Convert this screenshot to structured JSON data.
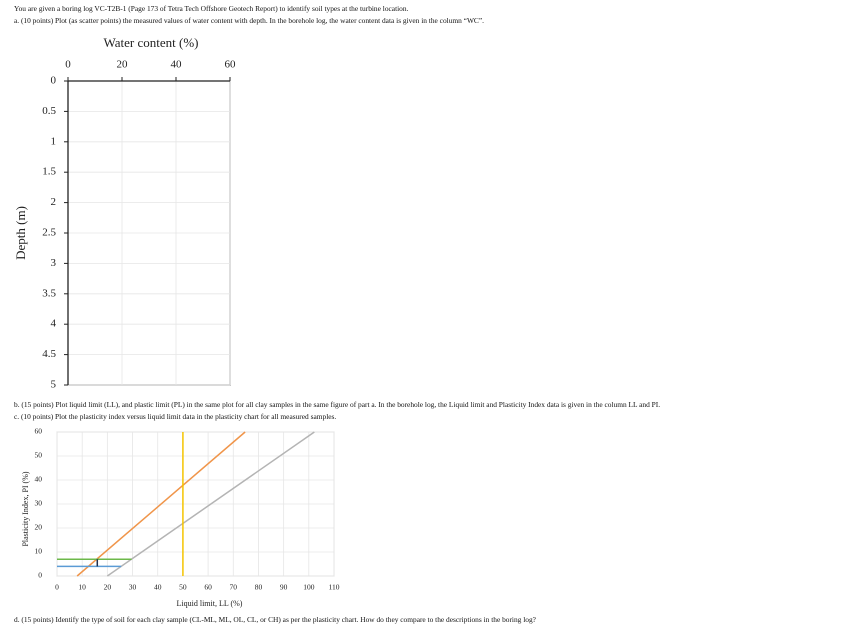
{
  "intro": "You are given a boring log VC-T2B-1 (Page 173 of Tetra Tech Offshore Geotech Report) to identify soil types at the turbine location.",
  "question_a": "a. (10 points) Plot (as scatter points) the measured values of water content with depth. In the borehole log, the water content data is given in the column “WC”.",
  "question_b": "b. (15 points) Plot liquid limit (LL), and plastic limit (PL) in the same plot for all clay samples in the same figure of part a. In the borehole log, the Liquid limit and Plasticity Index data is given in the column LL and PI.",
  "question_c": "c. (10 points) Plot the plasticity index versus liquid limit data in the plasticity chart for all measured samples.",
  "question_d": "d. (15 points) Identify the type of soil for each clay sample (CL-ML, ML, OL, CL, or CH) as per the plasticity chart. How do they compare to the descriptions in the boring log?",
  "chart_data": [
    {
      "type": "scatter",
      "x_label": "Water content (%)",
      "y_label": "Depth (m)",
      "xlim": [
        0,
        60
      ],
      "xticks": [
        0,
        20,
        40,
        60
      ],
      "ylim": [
        0,
        5
      ],
      "yticks": [
        0,
        0.5,
        1,
        1.5,
        2,
        2.5,
        3,
        3.5,
        4,
        4.5,
        5
      ],
      "y_inverted": true,
      "x_axis_top": true,
      "grid": true
    },
    {
      "type": "line",
      "x_label": "Liquid limit, LL (%)",
      "y_label": "Plasticity Index, PI (%)",
      "xlim": [
        0,
        110
      ],
      "xticks": [
        0,
        10,
        20,
        30,
        40,
        50,
        60,
        70,
        80,
        90,
        100,
        110
      ],
      "ylim": [
        0,
        60
      ],
      "yticks": [
        0,
        10,
        20,
        30,
        40,
        50,
        60
      ],
      "grid": true,
      "series": [
        {
          "color": "#f0954a",
          "x": [
            8,
            74.7
          ],
          "values": [
            0,
            60
          ]
        },
        {
          "color": "#b4b4b4",
          "x": [
            20,
            102.2
          ],
          "values": [
            0,
            60
          ]
        },
        {
          "color": "#f5c400",
          "x": [
            50,
            50
          ],
          "values": [
            0,
            60
          ]
        },
        {
          "color": "#6cb84a",
          "x": [
            0,
            29.6
          ],
          "values": [
            7,
            7
          ]
        },
        {
          "color": "#5b9bd5",
          "x": [
            0,
            25.5
          ],
          "values": [
            4,
            4
          ]
        },
        {
          "color": "#1f2f4f",
          "x": [
            16,
            16
          ],
          "values": [
            4,
            7
          ]
        }
      ]
    }
  ]
}
